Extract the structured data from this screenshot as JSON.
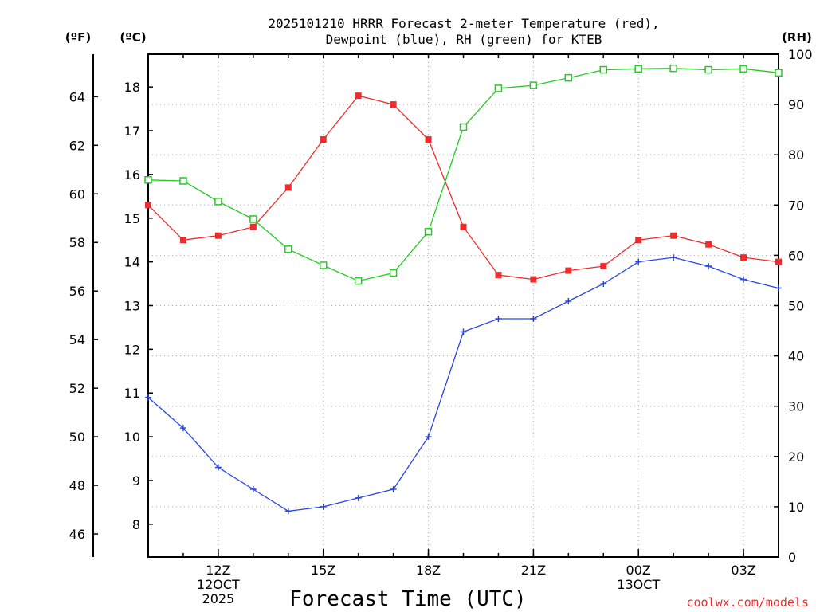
{
  "chart_data": {
    "type": "line",
    "title_line1": "2025101210 HRRR Forecast 2-meter Temperature (red),",
    "title_line2": "Dewpoint (blue), RH (green) for KTEB",
    "xlabel": "Forecast Time (UTC)",
    "left_outer_label": "(ºF)",
    "left_inner_label": "(ºC)",
    "right_label": "(RH)",
    "credit": "coolwx.com/models",
    "x_hours": [
      10,
      11,
      12,
      13,
      14,
      15,
      16,
      17,
      18,
      19,
      20,
      21,
      22,
      23,
      24,
      25,
      26,
      27,
      28
    ],
    "x_ticks": [
      {
        "hour": 12,
        "lines": [
          "12Z",
          "12OCT",
          "2025"
        ]
      },
      {
        "hour": 15,
        "lines": [
          "15Z"
        ]
      },
      {
        "hour": 18,
        "lines": [
          "18Z"
        ]
      },
      {
        "hour": 21,
        "lines": [
          "21Z"
        ]
      },
      {
        "hour": 24,
        "lines": [
          "00Z",
          "13OCT"
        ]
      },
      {
        "hour": 27,
        "lines": [
          "03Z"
        ]
      }
    ],
    "xlim": [
      10,
      28
    ],
    "celsius_axis": {
      "ylim": [
        7.25,
        18.75
      ],
      "ticks": [
        8,
        9,
        10,
        11,
        12,
        13,
        14,
        15,
        16,
        17,
        18
      ]
    },
    "fahrenheit_axis": {
      "ticks": [
        46,
        48,
        50,
        52,
        54,
        56,
        58,
        60,
        62,
        64
      ]
    },
    "rh_axis": {
      "ylim": [
        0,
        100
      ],
      "ticks": [
        0,
        10,
        20,
        30,
        40,
        50,
        60,
        70,
        80,
        90,
        100
      ]
    },
    "series": [
      {
        "name": "Temperature",
        "unit": "C",
        "color": "#ee2c2c",
        "marker": "filled-square",
        "values": [
          15.3,
          14.5,
          14.6,
          14.8,
          15.7,
          16.8,
          17.8,
          17.6,
          16.8,
          14.8,
          13.7,
          13.6,
          13.8,
          13.9,
          14.5,
          14.6,
          14.4,
          14.1,
          14.0
        ]
      },
      {
        "name": "Dewpoint",
        "unit": "C",
        "color": "#2846e6",
        "marker": "plus",
        "values": [
          10.9,
          10.2,
          9.3,
          8.8,
          8.3,
          8.4,
          8.6,
          8.8,
          10.0,
          12.4,
          12.7,
          12.7,
          13.1,
          13.5,
          14.0,
          14.1,
          13.9,
          13.6,
          13.4
        ]
      },
      {
        "name": "RH",
        "unit": "%",
        "color": "#22cc22",
        "marker": "open-square",
        "values": [
          75.0,
          74.8,
          70.7,
          67.2,
          61.2,
          58.0,
          54.9,
          56.5,
          64.7,
          85.5,
          93.2,
          93.8,
          95.3,
          96.9,
          97.1,
          97.2,
          96.9,
          97.1,
          96.3
        ]
      }
    ]
  }
}
